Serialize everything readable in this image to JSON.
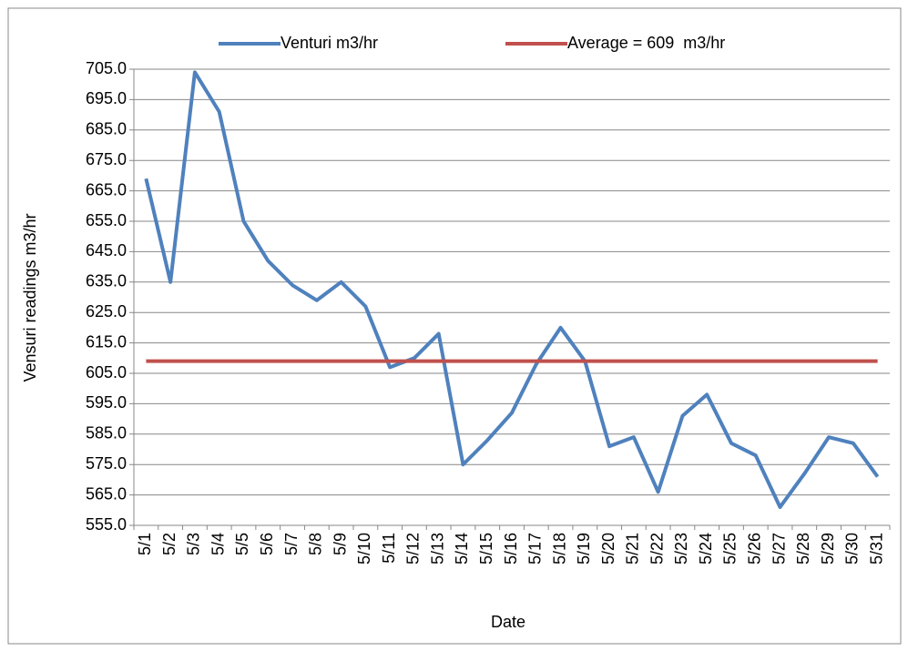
{
  "chart_data": {
    "type": "line",
    "x_label": "Date",
    "y_label": "Vensuri readings m3/hr",
    "categories": [
      "5/1",
      "5/2",
      "5/3",
      "5/4",
      "5/5",
      "5/6",
      "5/7",
      "5/8",
      "5/9",
      "5/10",
      "5/11",
      "5/12",
      "5/13",
      "5/14",
      "5/15",
      "5/16",
      "5/17",
      "5/18",
      "5/19",
      "5/20",
      "5/21",
      "5/22",
      "5/23",
      "5/24",
      "5/25",
      "5/26",
      "5/27",
      "5/28",
      "5/29",
      "5/30",
      "5/31"
    ],
    "series": [
      {
        "name": "Venturi m3/hr",
        "color": "#4f81bd",
        "values": [
          669,
          635,
          704,
          691,
          655,
          642,
          634,
          629,
          635,
          627,
          607,
          610,
          618,
          575,
          583,
          592,
          608,
          620,
          609,
          581,
          584,
          566,
          591,
          598,
          582,
          578,
          561,
          572,
          584,
          582,
          571
        ]
      },
      {
        "name": "Average = 609  m3/hr",
        "color": "#c0504d",
        "values": [
          609,
          609,
          609,
          609,
          609,
          609,
          609,
          609,
          609,
          609,
          609,
          609,
          609,
          609,
          609,
          609,
          609,
          609,
          609,
          609,
          609,
          609,
          609,
          609,
          609,
          609,
          609,
          609,
          609,
          609,
          609
        ]
      }
    ],
    "ylim": [
      555,
      705
    ],
    "yticks": [
      {
        "value": 555,
        "label": "555.0"
      },
      {
        "value": 565,
        "label": "565.0"
      },
      {
        "value": 575,
        "label": "575.0"
      },
      {
        "value": 585,
        "label": "585.0"
      },
      {
        "value": 595,
        "label": "595.0"
      },
      {
        "value": 605,
        "label": "605.0"
      },
      {
        "value": 615,
        "label": "615.0"
      },
      {
        "value": 625,
        "label": "625.0"
      },
      {
        "value": 635,
        "label": "635.0"
      },
      {
        "value": 645,
        "label": "645.0"
      },
      {
        "value": 655,
        "label": "655.0"
      },
      {
        "value": 665,
        "label": "665.0"
      },
      {
        "value": 675,
        "label": "675.0"
      },
      {
        "value": 685,
        "label": "685.0"
      },
      {
        "value": 695,
        "label": "695.0"
      },
      {
        "value": 705,
        "label": "705.0"
      }
    ],
    "grid": true,
    "legend": "top"
  }
}
